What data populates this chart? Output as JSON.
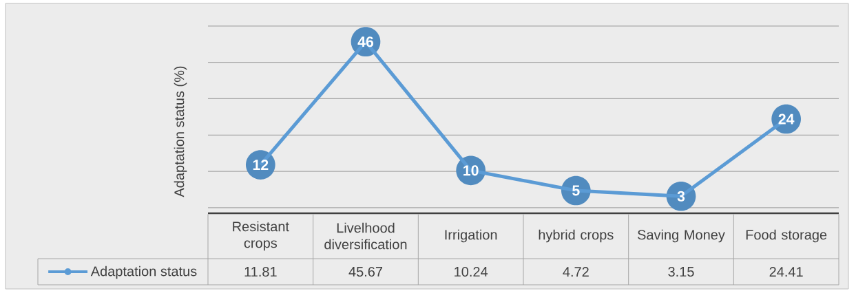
{
  "chart_data": {
    "type": "line",
    "ylabel": "Adaptation status (%)",
    "categories": [
      "Resistant crops",
      "Livelhood diversification",
      "Irrigation",
      "hybrid crops",
      "Saving Money",
      "Food storage"
    ],
    "series": [
      {
        "name": "Adaptation status",
        "color": "#5b9bd5",
        "values": [
          11.81,
          45.67,
          10.24,
          4.72,
          3.15,
          24.41
        ]
      }
    ],
    "annotations": [
      {
        "text": "12",
        "x": "Resistant crops",
        "y": 11.81
      },
      {
        "text": "46",
        "x": "Livelhood diversification",
        "y": 45.67
      },
      {
        "text": "10",
        "x": "Irrigation",
        "y": 10.24
      },
      {
        "text": "5",
        "x": "hybrid crops",
        "y": 4.72
      },
      {
        "text": "3",
        "x": "Saving Money",
        "y": 3.15
      },
      {
        "text": "24",
        "x": "Food storage",
        "y": 24.41
      }
    ],
    "tick_labels": "x",
    "grid": "y",
    "legend": "bottom left",
    "marker": "circle",
    "data_labels": true
  }
}
